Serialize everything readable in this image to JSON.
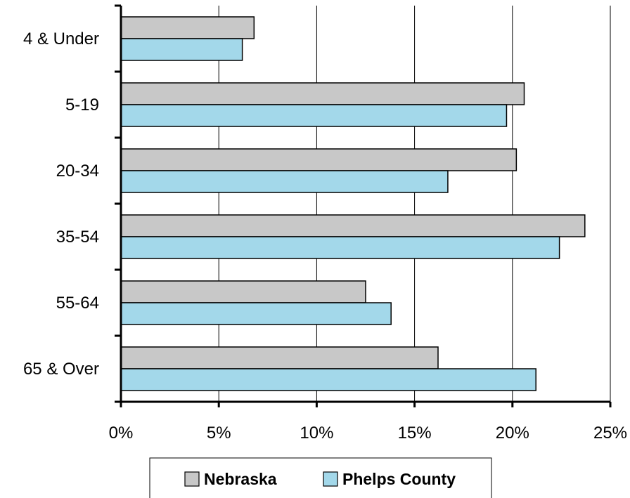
{
  "chart_data": {
    "type": "bar",
    "orientation": "horizontal",
    "categories": [
      "4 & Under",
      "5-19",
      "20-34",
      "35-54",
      "55-64",
      "65 & Over"
    ],
    "series": [
      {
        "name": "Nebraska",
        "color": "#c8c8c8",
        "values": [
          6.8,
          20.6,
          20.2,
          23.7,
          12.5,
          16.2
        ]
      },
      {
        "name": "Phelps County",
        "color": "#a3d8ea",
        "values": [
          6.2,
          19.7,
          16.7,
          22.4,
          13.8,
          21.2
        ]
      }
    ],
    "xlim": [
      0,
      25
    ],
    "xticks": [
      "0%",
      "5%",
      "10%",
      "15%",
      "20%",
      "25%"
    ],
    "grid": "vertical",
    "legend": "bottom",
    "title": "",
    "xlabel": "",
    "ylabel": ""
  }
}
